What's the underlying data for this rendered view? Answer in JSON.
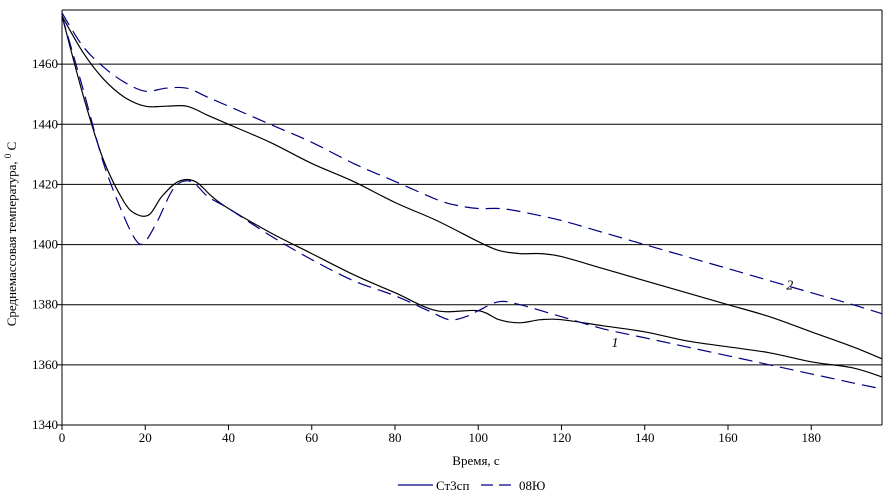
{
  "chart_data": {
    "type": "line",
    "xlabel": "Время, с",
    "ylabel": "Среднемассовая температура,",
    "ylabel_sup": "0",
    "ylabel_unit": "C",
    "xlim": [
      0,
      197
    ],
    "ylim": [
      1340,
      1478
    ],
    "x_ticks": [
      0,
      20,
      40,
      60,
      80,
      100,
      120,
      140,
      160,
      180
    ],
    "y_ticks": [
      1340,
      1360,
      1380,
      1400,
      1420,
      1440,
      1460
    ],
    "grid": "horizontal",
    "legend_position": "bottom",
    "colors": {
      "Ст3сп": "#000080",
      "08Ю": "#000080"
    },
    "annotations": [
      {
        "text": "1",
        "x": 132,
        "y": 1366
      },
      {
        "text": "2",
        "x": 174,
        "y": 1385
      }
    ],
    "series": [
      {
        "name": "Ст3сп",
        "curve": "1",
        "style": "solid",
        "x": [
          0,
          5,
          10,
          15,
          18,
          21,
          24,
          28,
          32,
          36,
          40,
          50,
          60,
          70,
          80,
          90,
          100,
          105,
          110,
          115,
          120,
          130,
          140,
          150,
          160,
          170,
          180,
          190,
          197
        ],
        "y": [
          1476,
          1450,
          1428,
          1414,
          1410,
          1410,
          1416,
          1421,
          1421,
          1416,
          1412,
          1404,
          1397,
          1390,
          1384,
          1378,
          1378,
          1375,
          1374,
          1375,
          1375,
          1373,
          1371,
          1368,
          1366,
          1364,
          1361,
          1359,
          1356
        ]
      },
      {
        "name": "08Ю",
        "curve": "1",
        "style": "dashed",
        "x": [
          0,
          5,
          10,
          15,
          18,
          20,
          23,
          27,
          31,
          35,
          40,
          50,
          60,
          70,
          80,
          88,
          93,
          97,
          100,
          105,
          110,
          120,
          130,
          140,
          150,
          160,
          170,
          180,
          190,
          197
        ],
        "y": [
          1476,
          1452,
          1427,
          1409,
          1401,
          1401,
          1408,
          1419,
          1421,
          1416,
          1412,
          1403,
          1395,
          1388,
          1383,
          1378,
          1375,
          1376,
          1378,
          1381,
          1380,
          1376,
          1372,
          1369,
          1366,
          1363,
          1360,
          1357,
          1354,
          1352
        ]
      },
      {
        "name": "Ст3сп",
        "curve": "2",
        "style": "solid",
        "x": [
          0,
          5,
          10,
          15,
          20,
          25,
          30,
          35,
          40,
          50,
          60,
          70,
          80,
          90,
          100,
          105,
          110,
          115,
          120,
          130,
          140,
          150,
          160,
          170,
          180,
          190,
          197
        ],
        "y": [
          1476,
          1464,
          1455,
          1449,
          1446,
          1446,
          1446,
          1443,
          1440,
          1434,
          1427,
          1421,
          1414,
          1408,
          1401,
          1398,
          1397,
          1397,
          1396,
          1392,
          1388,
          1384,
          1380,
          1376,
          1371,
          1366,
          1362
        ]
      },
      {
        "name": "08Ю",
        "curve": "2",
        "style": "dashed",
        "x": [
          0,
          5,
          10,
          15,
          20,
          25,
          30,
          35,
          40,
          50,
          60,
          70,
          80,
          90,
          95,
          100,
          105,
          110,
          120,
          130,
          140,
          150,
          160,
          170,
          180,
          190,
          197
        ],
        "y": [
          1477,
          1466,
          1459,
          1454,
          1451,
          1452,
          1452,
          1449,
          1446,
          1440,
          1434,
          1427,
          1421,
          1415,
          1413,
          1412,
          1412,
          1411,
          1408,
          1404,
          1400,
          1396,
          1392,
          1388,
          1384,
          1380,
          1377
        ]
      }
    ]
  }
}
